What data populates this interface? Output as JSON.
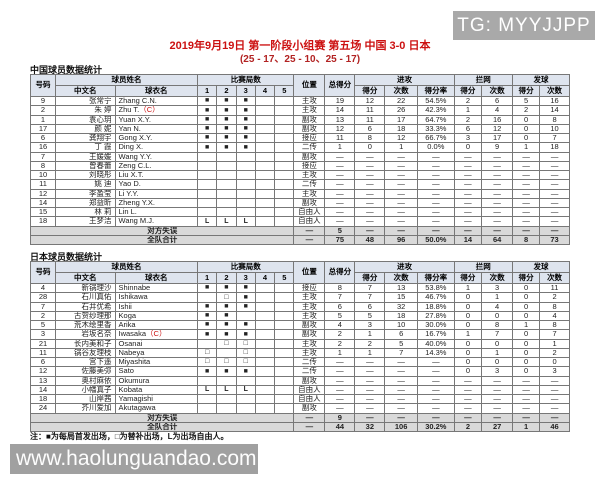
{
  "tag": {
    "text": "TG: MYYJJPP"
  },
  "title": "2019年9月19日 第一阶段小组赛 第五场 中国 3-0 日本",
  "subtitle": "(25 - 17、25 - 10、25 - 17)",
  "footer_note": "注：■为每局首发出场，□为替补出场，L为出场自由人。",
  "watermark": "www.haolunguandao.com",
  "captain_mark": "（C）",
  "set_symbols": {
    "S": "■",
    "B": "□",
    "L": "L"
  },
  "colors": {
    "accent_red": "#cc1111",
    "header_bg": "#dee4ee",
    "total_row_bg": "#d9d9d9",
    "tag_bg": "#a9a9a9",
    "watermark_bg": "#a0a0a0"
  },
  "header": {
    "col_no": "号码",
    "col_name_group": "球员姓名",
    "col_cn": "中文名",
    "col_jersey": "球衣名",
    "col_sets_group": "比赛局数",
    "set_nums": [
      "1",
      "2",
      "3",
      "4",
      "5"
    ],
    "col_pos": "位置",
    "col_total": "总得分",
    "col_attack_group": "进攻",
    "col_pts": "得分",
    "col_cnt": "次数",
    "col_rate": "得分率",
    "col_block_group": "拦网",
    "col_serve_group": "发球"
  },
  "tables": [
    {
      "section_title": "中国球员数据统计",
      "rows": [
        {
          "no": "9",
          "cn": "张常宁",
          "jersey": "Zhang C.N.",
          "captain": false,
          "sets": [
            "S",
            "S",
            "S",
            "",
            ""
          ],
          "pos": "主攻",
          "stats": [
            "19",
            "12",
            "22",
            "54.5%",
            "2",
            "6",
            "5",
            "16"
          ]
        },
        {
          "no": "2",
          "cn": "朱 婷",
          "jersey": "Zhu T.",
          "captain": true,
          "sets": [
            "S",
            "S",
            "S",
            "",
            ""
          ],
          "pos": "主攻",
          "stats": [
            "14",
            "11",
            "26",
            "42.3%",
            "1",
            "4",
            "2",
            "14"
          ]
        },
        {
          "no": "1",
          "cn": "袁心玥",
          "jersey": "Yuan X.Y.",
          "captain": false,
          "sets": [
            "S",
            "S",
            "S",
            "",
            ""
          ],
          "pos": "副攻",
          "stats": [
            "13",
            "11",
            "17",
            "64.7%",
            "2",
            "16",
            "0",
            "8"
          ]
        },
        {
          "no": "17",
          "cn": "颜 妮",
          "jersey": "Yan N.",
          "captain": false,
          "sets": [
            "S",
            "S",
            "S",
            "",
            ""
          ],
          "pos": "副攻",
          "stats": [
            "12",
            "6",
            "18",
            "33.3%",
            "6",
            "12",
            "0",
            "10"
          ]
        },
        {
          "no": "6",
          "cn": "龚翔宇",
          "jersey": "Gong X.Y.",
          "captain": false,
          "sets": [
            "S",
            "S",
            "S",
            "",
            ""
          ],
          "pos": "接应",
          "stats": [
            "11",
            "8",
            "12",
            "66.7%",
            "3",
            "17",
            "0",
            "7"
          ]
        },
        {
          "no": "16",
          "cn": "丁 霞",
          "jersey": "Ding X.",
          "captain": false,
          "sets": [
            "S",
            "S",
            "S",
            "",
            ""
          ],
          "pos": "二传",
          "stats": [
            "1",
            "0",
            "1",
            "0.0%",
            "0",
            "9",
            "1",
            "18"
          ]
        },
        {
          "no": "7",
          "cn": "王媛媛",
          "jersey": "Wang Y.Y.",
          "captain": false,
          "sets": [
            "",
            "",
            "",
            "",
            ""
          ],
          "pos": "副攻",
          "stats": [
            "—",
            "—",
            "—",
            "—",
            "—",
            "—",
            "—",
            "—"
          ]
        },
        {
          "no": "8",
          "cn": "曾春蕾",
          "jersey": "Zeng C.L.",
          "captain": false,
          "sets": [
            "",
            "",
            "",
            "",
            ""
          ],
          "pos": "接应",
          "stats": [
            "—",
            "—",
            "—",
            "—",
            "—",
            "—",
            "—",
            "—"
          ]
        },
        {
          "no": "10",
          "cn": "刘晓彤",
          "jersey": "Liu X.T.",
          "captain": false,
          "sets": [
            "",
            "",
            "",
            "",
            ""
          ],
          "pos": "主攻",
          "stats": [
            "—",
            "—",
            "—",
            "—",
            "—",
            "—",
            "—",
            "—"
          ]
        },
        {
          "no": "11",
          "cn": "姚 迪",
          "jersey": "Yao D.",
          "captain": false,
          "sets": [
            "",
            "",
            "",
            "",
            ""
          ],
          "pos": "二传",
          "stats": [
            "—",
            "—",
            "—",
            "—",
            "—",
            "—",
            "—",
            "—"
          ]
        },
        {
          "no": "12",
          "cn": "李盈莹",
          "jersey": "Li Y.Y.",
          "captain": false,
          "sets": [
            "",
            "",
            "",
            "",
            ""
          ],
          "pos": "主攻",
          "stats": [
            "—",
            "—",
            "—",
            "—",
            "—",
            "—",
            "—",
            "—"
          ]
        },
        {
          "no": "14",
          "cn": "郑益昕",
          "jersey": "Zheng Y.X.",
          "captain": false,
          "sets": [
            "",
            "",
            "",
            "",
            ""
          ],
          "pos": "副攻",
          "stats": [
            "—",
            "—",
            "—",
            "—",
            "—",
            "—",
            "—",
            "—"
          ]
        },
        {
          "no": "15",
          "cn": "林 莉",
          "jersey": "Lin L.",
          "captain": false,
          "sets": [
            "",
            "",
            "",
            "",
            ""
          ],
          "pos": "自由人",
          "stats": [
            "—",
            "—",
            "—",
            "—",
            "—",
            "—",
            "—",
            "—"
          ]
        },
        {
          "no": "18",
          "cn": "王梦洁",
          "jersey": "Wang M.J.",
          "captain": false,
          "sets": [
            "L",
            "L",
            "L",
            "",
            ""
          ],
          "pos": "自由人",
          "stats": [
            "—",
            "—",
            "—",
            "—",
            "—",
            "—",
            "—",
            "—"
          ]
        }
      ],
      "opp_error": {
        "label": "对方失误",
        "pos": "—",
        "stats": [
          "5",
          "—",
          "—",
          "—",
          "—",
          "—",
          "—",
          "—"
        ]
      },
      "team_total": {
        "label": "全队合计",
        "pos": "—",
        "stats": [
          "75",
          "48",
          "96",
          "50.0%",
          "14",
          "64",
          "8",
          "73"
        ]
      }
    },
    {
      "section_title": "日本球员数据统计",
      "rows": [
        {
          "no": "4",
          "cn": "新锅理沙",
          "jersey": "Shinnabe",
          "captain": false,
          "sets": [
            "S",
            "S",
            "S",
            "",
            ""
          ],
          "pos": "接应",
          "stats": [
            "8",
            "7",
            "13",
            "53.8%",
            "1",
            "3",
            "0",
            "11"
          ]
        },
        {
          "no": "28",
          "cn": "石川真佑",
          "jersey": "Ishikawa",
          "captain": false,
          "sets": [
            "",
            "B",
            "S",
            "",
            ""
          ],
          "pos": "主攻",
          "stats": [
            "7",
            "7",
            "15",
            "46.7%",
            "0",
            "1",
            "0",
            "2"
          ]
        },
        {
          "no": "7",
          "cn": "石井优希",
          "jersey": "Ishii",
          "captain": false,
          "sets": [
            "S",
            "S",
            "S",
            "",
            ""
          ],
          "pos": "主攻",
          "stats": [
            "6",
            "6",
            "32",
            "18.8%",
            "0",
            "4",
            "0",
            "8"
          ]
        },
        {
          "no": "2",
          "cn": "古贺纱理那",
          "jersey": "Koga",
          "captain": false,
          "sets": [
            "S",
            "S",
            "",
            "",
            ""
          ],
          "pos": "主攻",
          "stats": [
            "5",
            "5",
            "18",
            "27.8%",
            "0",
            "0",
            "0",
            "4"
          ]
        },
        {
          "no": "5",
          "cn": "荒木绘里香",
          "jersey": "Arika",
          "captain": false,
          "sets": [
            "S",
            "S",
            "S",
            "",
            ""
          ],
          "pos": "副攻",
          "stats": [
            "4",
            "3",
            "10",
            "30.0%",
            "0",
            "8",
            "1",
            "8"
          ]
        },
        {
          "no": "3",
          "cn": "岩坂名奈",
          "jersey": "Iwasaka",
          "captain": true,
          "sets": [
            "S",
            "S",
            "S",
            "",
            ""
          ],
          "pos": "副攻",
          "stats": [
            "2",
            "1",
            "6",
            "16.7%",
            "1",
            "7",
            "0",
            "7"
          ]
        },
        {
          "no": "21",
          "cn": "长内美和子",
          "jersey": "Osanai",
          "captain": false,
          "sets": [
            "",
            "B",
            "B",
            "",
            ""
          ],
          "pos": "主攻",
          "stats": [
            "2",
            "2",
            "5",
            "40.0%",
            "0",
            "0",
            "0",
            "1"
          ]
        },
        {
          "no": "11",
          "cn": "锅谷友理枝",
          "jersey": "Nabeya",
          "captain": false,
          "sets": [
            "B",
            "",
            "B",
            "",
            ""
          ],
          "pos": "主攻",
          "stats": [
            "1",
            "1",
            "7",
            "14.3%",
            "0",
            "1",
            "0",
            "2"
          ]
        },
        {
          "no": "6",
          "cn": "宫下遥",
          "jersey": "Miyashita",
          "captain": false,
          "sets": [
            "B",
            "B",
            "B",
            "",
            ""
          ],
          "pos": "二传",
          "stats": [
            "—",
            "—",
            "—",
            "—",
            "0",
            "0",
            "0",
            "0"
          ]
        },
        {
          "no": "12",
          "cn": "佐藤美弥",
          "jersey": "Sato",
          "captain": false,
          "sets": [
            "S",
            "S",
            "S",
            "",
            ""
          ],
          "pos": "二传",
          "stats": [
            "—",
            "—",
            "—",
            "—",
            "0",
            "3",
            "0",
            "3"
          ]
        },
        {
          "no": "13",
          "cn": "奥村麻依",
          "jersey": "Okumura",
          "captain": false,
          "sets": [
            "",
            "",
            "",
            "",
            ""
          ],
          "pos": "副攻",
          "stats": [
            "—",
            "—",
            "—",
            "—",
            "—",
            "—",
            "—",
            "—"
          ]
        },
        {
          "no": "14",
          "cn": "小幡真子",
          "jersey": "Kobata",
          "captain": false,
          "sets": [
            "L",
            "L",
            "L",
            "",
            ""
          ],
          "pos": "自由人",
          "stats": [
            "—",
            "—",
            "—",
            "—",
            "—",
            "—",
            "—",
            "—"
          ]
        },
        {
          "no": "18",
          "cn": "山岸茜",
          "jersey": "Yamagishi",
          "captain": false,
          "sets": [
            "",
            "",
            "",
            "",
            ""
          ],
          "pos": "自由人",
          "stats": [
            "—",
            "—",
            "—",
            "—",
            "—",
            "—",
            "—",
            "—"
          ]
        },
        {
          "no": "24",
          "cn": "芥川爱加",
          "jersey": "Akutagawa",
          "captain": false,
          "sets": [
            "",
            "",
            "",
            "",
            ""
          ],
          "pos": "副攻",
          "stats": [
            "—",
            "—",
            "—",
            "—",
            "—",
            "—",
            "—",
            "—"
          ]
        }
      ],
      "opp_error": {
        "label": "对方失误",
        "pos": "—",
        "stats": [
          "9",
          "—",
          "—",
          "—",
          "—",
          "—",
          "—",
          "—"
        ]
      },
      "team_total": {
        "label": "全队合计",
        "pos": "—",
        "stats": [
          "44",
          "32",
          "106",
          "30.2%",
          "2",
          "27",
          "1",
          "46"
        ]
      }
    }
  ]
}
